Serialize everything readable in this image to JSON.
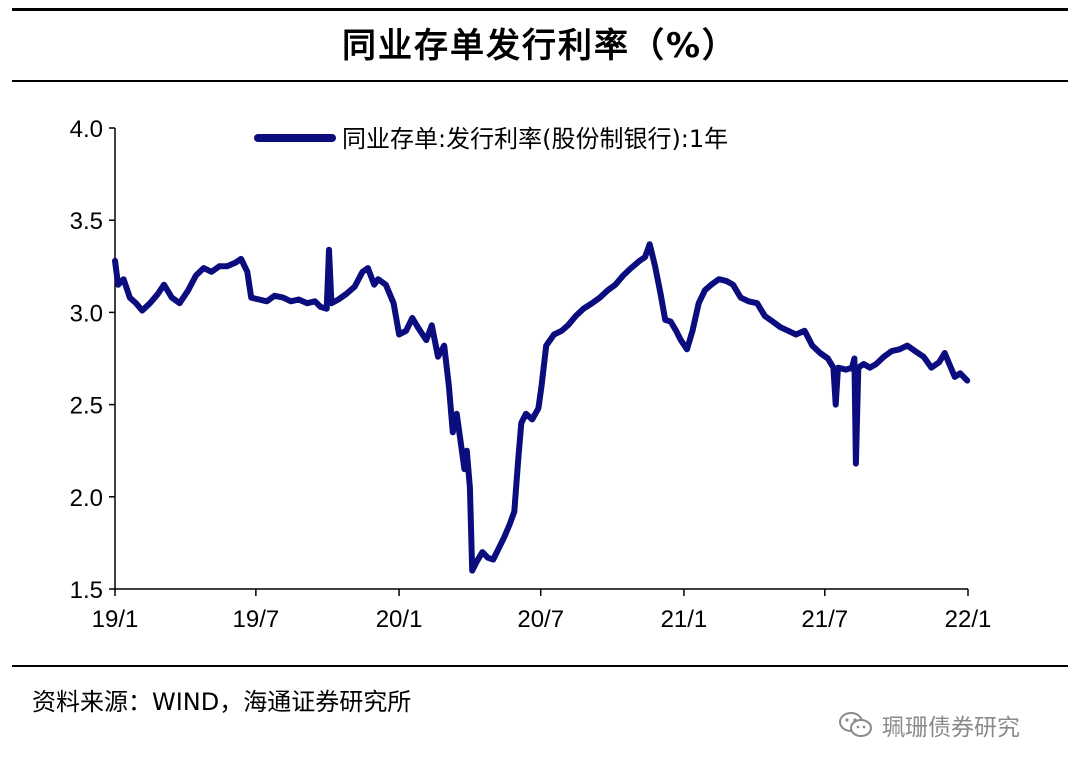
{
  "header": {
    "title": "同业存单发行利率（%）"
  },
  "footer": {
    "source": "资料来源：WIND，海通证券研究所",
    "watermark": "珮珊债券研究",
    "watermark_icon": "wechat-icon"
  },
  "colors": {
    "series": "#0b0c7d",
    "axis": "#000000",
    "rule": "#000000",
    "watermark": "#8a8a8a"
  },
  "chart_data": {
    "type": "line",
    "title": "同业存单发行利率（%）",
    "xlabel": "",
    "ylabel": "",
    "ylim": [
      1.5,
      4.0
    ],
    "yticks": [
      "1.5",
      "2.0",
      "2.5",
      "3.0",
      "3.5",
      "4.0"
    ],
    "xticks": [
      "19/1",
      "19/7",
      "20/1",
      "20/7",
      "21/1",
      "21/7",
      "22/1"
    ],
    "grid": false,
    "legend": "top",
    "series": [
      {
        "name": "同业存单:发行利率(股份制银行):1年",
        "points": [
          [
            "2019-01-01",
            3.28
          ],
          [
            "2019-01-05",
            3.15
          ],
          [
            "2019-01-12",
            3.18
          ],
          [
            "2019-01-20",
            3.08
          ],
          [
            "2019-01-28",
            3.05
          ],
          [
            "2019-02-05",
            3.01
          ],
          [
            "2019-02-15",
            3.05
          ],
          [
            "2019-02-25",
            3.1
          ],
          [
            "2019-03-05",
            3.15
          ],
          [
            "2019-03-15",
            3.08
          ],
          [
            "2019-03-25",
            3.05
          ],
          [
            "2019-04-05",
            3.12
          ],
          [
            "2019-04-15",
            3.2
          ],
          [
            "2019-04-25",
            3.24
          ],
          [
            "2019-05-05",
            3.22
          ],
          [
            "2019-05-15",
            3.25
          ],
          [
            "2019-05-25",
            3.25
          ],
          [
            "2019-06-05",
            3.27
          ],
          [
            "2019-06-12",
            3.29
          ],
          [
            "2019-06-20",
            3.22
          ],
          [
            "2019-06-25",
            3.08
          ],
          [
            "2019-07-05",
            3.07
          ],
          [
            "2019-07-15",
            3.06
          ],
          [
            "2019-07-25",
            3.09
          ],
          [
            "2019-08-05",
            3.08
          ],
          [
            "2019-08-15",
            3.06
          ],
          [
            "2019-08-25",
            3.07
          ],
          [
            "2019-09-05",
            3.05
          ],
          [
            "2019-09-15",
            3.06
          ],
          [
            "2019-09-22",
            3.03
          ],
          [
            "2019-09-30",
            3.02
          ],
          [
            "2019-10-03",
            3.34
          ],
          [
            "2019-10-06",
            3.05
          ],
          [
            "2019-10-15",
            3.07
          ],
          [
            "2019-10-25",
            3.1
          ],
          [
            "2019-11-05",
            3.14
          ],
          [
            "2019-11-15",
            3.22
          ],
          [
            "2019-11-22",
            3.24
          ],
          [
            "2019-11-30",
            3.15
          ],
          [
            "2019-12-05",
            3.18
          ],
          [
            "2019-12-15",
            3.15
          ],
          [
            "2019-12-25",
            3.05
          ],
          [
            "2020-01-01",
            2.88
          ],
          [
            "2020-01-10",
            2.9
          ],
          [
            "2020-01-18",
            2.97
          ],
          [
            "2020-01-25",
            2.92
          ],
          [
            "2020-02-05",
            2.85
          ],
          [
            "2020-02-12",
            2.93
          ],
          [
            "2020-02-20",
            2.76
          ],
          [
            "2020-02-28",
            2.82
          ],
          [
            "2020-03-05",
            2.6
          ],
          [
            "2020-03-10",
            2.35
          ],
          [
            "2020-03-15",
            2.45
          ],
          [
            "2020-03-20",
            2.3
          ],
          [
            "2020-03-25",
            2.15
          ],
          [
            "2020-03-28",
            2.25
          ],
          [
            "2020-04-01",
            2.05
          ],
          [
            "2020-04-04",
            1.6
          ],
          [
            "2020-04-10",
            1.65
          ],
          [
            "2020-04-17",
            1.7
          ],
          [
            "2020-04-24",
            1.67
          ],
          [
            "2020-05-01",
            1.66
          ],
          [
            "2020-05-08",
            1.72
          ],
          [
            "2020-05-15",
            1.78
          ],
          [
            "2020-05-22",
            1.85
          ],
          [
            "2020-05-28",
            1.92
          ],
          [
            "2020-06-02",
            2.2
          ],
          [
            "2020-06-06",
            2.4
          ],
          [
            "2020-06-12",
            2.45
          ],
          [
            "2020-06-20",
            2.42
          ],
          [
            "2020-06-28",
            2.48
          ],
          [
            "2020-07-02",
            2.6
          ],
          [
            "2020-07-08",
            2.82
          ],
          [
            "2020-07-18",
            2.88
          ],
          [
            "2020-07-28",
            2.9
          ],
          [
            "2020-08-05",
            2.93
          ],
          [
            "2020-08-15",
            2.98
          ],
          [
            "2020-08-25",
            3.02
          ],
          [
            "2020-09-05",
            3.05
          ],
          [
            "2020-09-15",
            3.08
          ],
          [
            "2020-09-25",
            3.12
          ],
          [
            "2020-10-05",
            3.15
          ],
          [
            "2020-10-15",
            3.2
          ],
          [
            "2020-10-25",
            3.24
          ],
          [
            "2020-11-05",
            3.28
          ],
          [
            "2020-11-12",
            3.3
          ],
          [
            "2020-11-18",
            3.37
          ],
          [
            "2020-11-25",
            3.25
          ],
          [
            "2020-12-02",
            3.1
          ],
          [
            "2020-12-08",
            2.96
          ],
          [
            "2020-12-15",
            2.95
          ],
          [
            "2020-12-22",
            2.9
          ],
          [
            "2020-12-28",
            2.85
          ],
          [
            "2021-01-05",
            2.8
          ],
          [
            "2021-01-12",
            2.9
          ],
          [
            "2021-01-20",
            3.05
          ],
          [
            "2021-01-28",
            3.12
          ],
          [
            "2021-02-05",
            3.15
          ],
          [
            "2021-02-15",
            3.18
          ],
          [
            "2021-02-25",
            3.17
          ],
          [
            "2021-03-05",
            3.15
          ],
          [
            "2021-03-15",
            3.08
          ],
          [
            "2021-03-25",
            3.06
          ],
          [
            "2021-04-05",
            3.05
          ],
          [
            "2021-04-15",
            2.98
          ],
          [
            "2021-04-25",
            2.95
          ],
          [
            "2021-05-05",
            2.92
          ],
          [
            "2021-05-15",
            2.9
          ],
          [
            "2021-05-25",
            2.88
          ],
          [
            "2021-06-05",
            2.9
          ],
          [
            "2021-06-15",
            2.82
          ],
          [
            "2021-06-25",
            2.78
          ],
          [
            "2021-07-05",
            2.75
          ],
          [
            "2021-07-12",
            2.7
          ],
          [
            "2021-07-15",
            2.5
          ],
          [
            "2021-07-18",
            2.7
          ],
          [
            "2021-07-28",
            2.69
          ],
          [
            "2021-08-05",
            2.7
          ],
          [
            "2021-08-08",
            2.75
          ],
          [
            "2021-08-10",
            2.18
          ],
          [
            "2021-08-13",
            2.7
          ],
          [
            "2021-08-20",
            2.72
          ],
          [
            "2021-08-28",
            2.7
          ],
          [
            "2021-09-05",
            2.72
          ],
          [
            "2021-09-15",
            2.76
          ],
          [
            "2021-09-25",
            2.79
          ],
          [
            "2021-10-05",
            2.8
          ],
          [
            "2021-10-15",
            2.82
          ],
          [
            "2021-10-25",
            2.79
          ],
          [
            "2021-11-05",
            2.76
          ],
          [
            "2021-11-15",
            2.7
          ],
          [
            "2021-11-25",
            2.73
          ],
          [
            "2021-12-02",
            2.78
          ],
          [
            "2021-12-08",
            2.72
          ],
          [
            "2021-12-15",
            2.65
          ],
          [
            "2021-12-22",
            2.67
          ],
          [
            "2021-12-31",
            2.63
          ]
        ]
      }
    ]
  }
}
